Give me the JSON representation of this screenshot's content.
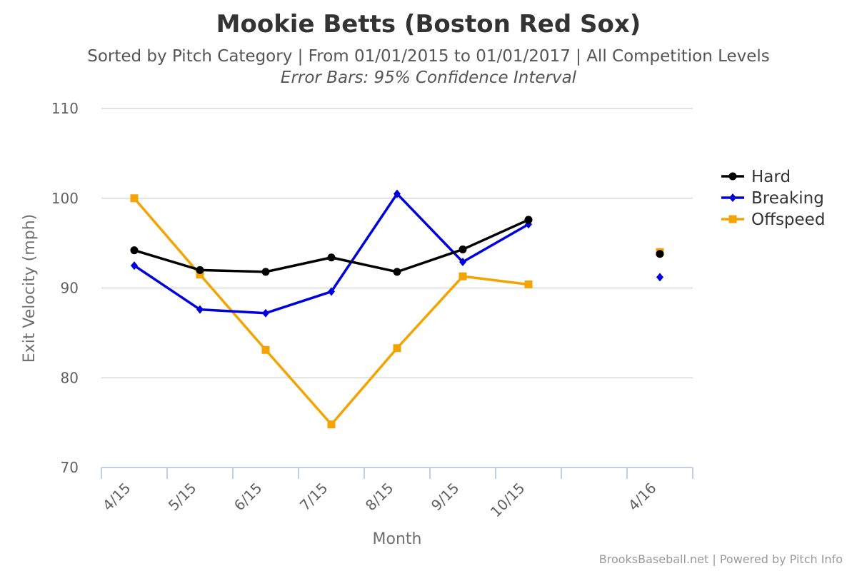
{
  "chart_data": {
    "type": "line",
    "title": "Mookie Betts (Boston Red Sox)",
    "subtitle": "Sorted by Pitch Category | From 01/01/2015 to 01/01/2017 | All Competition Levels",
    "note": "Error Bars: 95% Confidence Interval",
    "xlabel": "Month",
    "ylabel": "Exit Velocity (mph)",
    "ylim": [
      70,
      110
    ],
    "yticks": [
      70,
      80,
      90,
      100,
      110
    ],
    "categories": [
      "4/15",
      "5/15",
      "6/15",
      "7/15",
      "8/15",
      "9/15",
      "10/15",
      "",
      "4/16"
    ],
    "x_labels": [
      "4/15",
      "5/15",
      "6/15",
      "7/15",
      "8/15",
      "9/15",
      "10/15",
      "4/16"
    ],
    "grid": true,
    "legend_position": "right",
    "series": [
      {
        "name": "Hard",
        "color": "#000000",
        "marker": "circle",
        "values": [
          94.2,
          92.0,
          91.8,
          93.4,
          91.8,
          94.3,
          97.6,
          null,
          93.8
        ]
      },
      {
        "name": "Breaking",
        "color": "#0000dd",
        "marker": "diamond",
        "values": [
          92.5,
          87.6,
          87.2,
          89.6,
          100.5,
          92.9,
          97.1,
          null,
          91.2
        ]
      },
      {
        "name": "Offspeed",
        "color": "#f5a300",
        "marker": "square",
        "values": [
          100.0,
          91.5,
          83.1,
          74.8,
          83.3,
          91.3,
          90.4,
          null,
          94.0
        ]
      }
    ]
  },
  "credits": "BrooksBaseball.net | Powered by Pitch Info"
}
